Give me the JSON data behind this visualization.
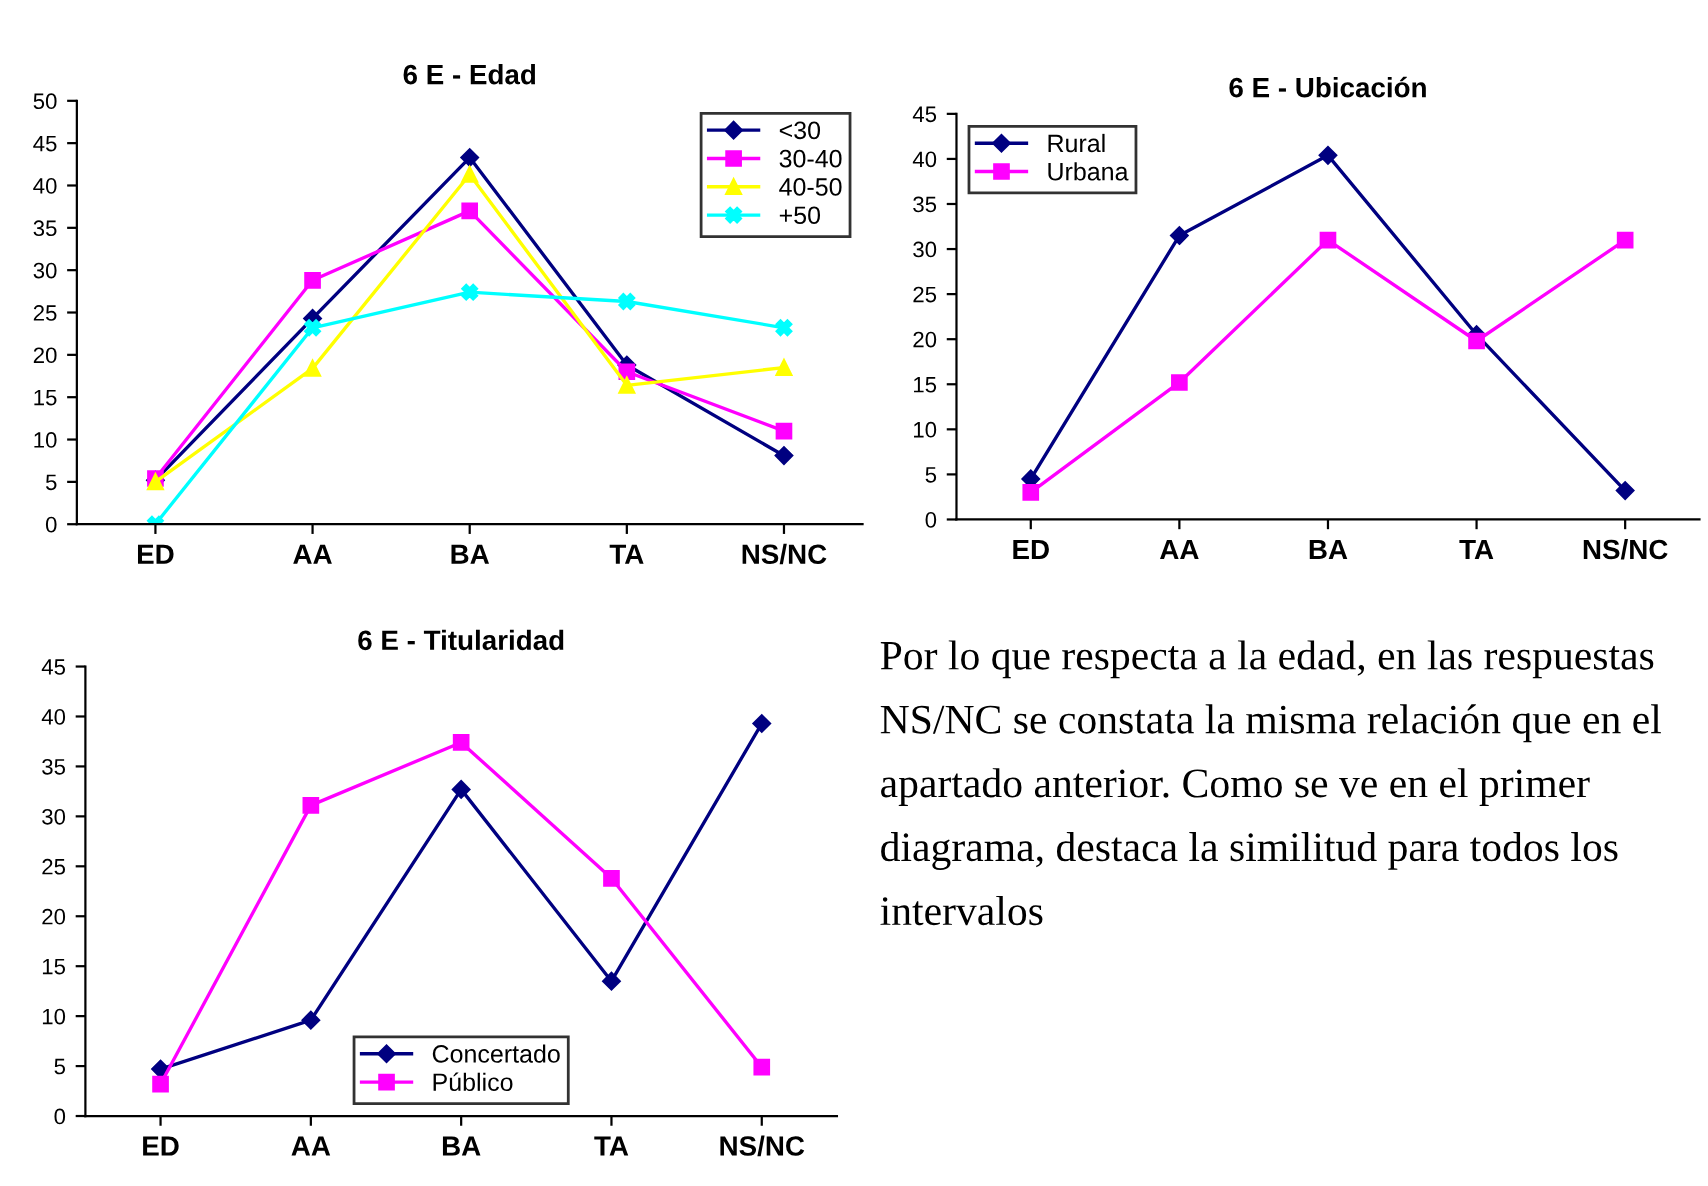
{
  "chart_data": [
    {
      "type": "line",
      "title": "6 E - Edad",
      "categories": [
        "ED",
        "AA",
        "BA",
        "TA",
        "NS/NC"
      ],
      "ylim": [
        0,
        50
      ],
      "yticks": [
        0,
        5,
        10,
        15,
        20,
        25,
        30,
        35,
        40,
        45,
        50
      ],
      "legend": "top right",
      "grid": false,
      "series": [
        {
          "name": "<30",
          "color": "#000080",
          "marker": "diamond",
          "values": [
            5.2,
            24.3,
            43.3,
            18.8,
            8.1
          ]
        },
        {
          "name": "30-40",
          "color": "#ff00ff",
          "marker": "square",
          "values": [
            5.4,
            28.8,
            37.0,
            18.0,
            11.0
          ]
        },
        {
          "name": "40-50",
          "color": "#ffff00",
          "marker": "triangle",
          "values": [
            5.0,
            18.4,
            41.3,
            16.4,
            18.5
          ]
        },
        {
          "name": "+50",
          "color": "#00ffff",
          "marker": "cross",
          "values": [
            0,
            23.2,
            27.4,
            26.3,
            23.2
          ]
        }
      ]
    },
    {
      "type": "line",
      "title": "6 E - Ubicación",
      "categories": [
        "ED",
        "AA",
        "BA",
        "TA",
        "NS/NC"
      ],
      "ylim": [
        0,
        45
      ],
      "yticks": [
        0,
        5,
        10,
        15,
        20,
        25,
        30,
        35,
        40,
        45
      ],
      "legend": "top left",
      "grid": false,
      "series": [
        {
          "name": "Rural",
          "color": "#000080",
          "marker": "diamond",
          "values": [
            4.5,
            31.5,
            40.4,
            20.5,
            3.2
          ]
        },
        {
          "name": "Urbana",
          "color": "#ff00ff",
          "marker": "square",
          "values": [
            3.0,
            15.2,
            31.0,
            19.8,
            31.0
          ]
        }
      ]
    },
    {
      "type": "line",
      "title": "6 E - Titularidad",
      "categories": [
        "ED",
        "AA",
        "BA",
        "TA",
        "NS/NC"
      ],
      "ylim": [
        0,
        45
      ],
      "yticks": [
        0,
        5,
        10,
        15,
        20,
        25,
        30,
        35,
        40,
        45
      ],
      "legend": "bottom",
      "grid": false,
      "series": [
        {
          "name": "Concertado",
          "color": "#000080",
          "marker": "diamond",
          "values": [
            4.7,
            9.6,
            32.7,
            13.5,
            39.3
          ]
        },
        {
          "name": "Público",
          "color": "#ff00ff",
          "marker": "square",
          "values": [
            3.2,
            31.1,
            37.4,
            23.8,
            4.9
          ]
        }
      ]
    },
    {
      "type": "other",
      "annotations": [
        "Por lo que respecta a la edad, en las respuestas NS/NC se constata la misma relación que en el apartado anterior. Como se ve en el primer diagrama, destaca la similitud para todos los intervalos"
      ]
    }
  ]
}
